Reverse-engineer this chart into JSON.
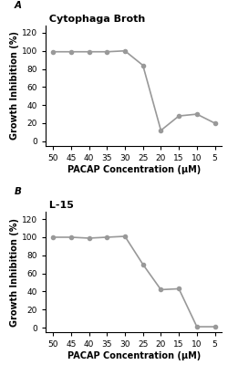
{
  "panel_A": {
    "title": "Cytophaga Broth",
    "panel_label": "A",
    "x": [
      50,
      45,
      40,
      35,
      30,
      25,
      20,
      15,
      10,
      5
    ],
    "y": [
      99,
      99,
      99,
      99,
      100,
      84,
      12,
      28,
      30,
      20
    ],
    "xlabel": "PACAP Concentration (μM)",
    "ylabel": "Growth Inhibition (%)",
    "ylim": [
      -5,
      128
    ],
    "yticks": [
      0,
      20,
      40,
      60,
      80,
      100,
      120
    ],
    "xticks": [
      50,
      45,
      40,
      35,
      30,
      25,
      20,
      15,
      10,
      5
    ]
  },
  "panel_B": {
    "title": "L-15",
    "panel_label": "B",
    "x": [
      50,
      45,
      40,
      35,
      30,
      25,
      20,
      15,
      10,
      5
    ],
    "y": [
      100,
      100,
      99,
      100,
      101,
      70,
      42,
      43,
      1,
      1
    ],
    "xlabel": "PACAP Concentration (μM)",
    "ylabel": "Growth Inhibition (%)",
    "ylim": [
      -5,
      128
    ],
    "yticks": [
      0,
      20,
      40,
      60,
      80,
      100,
      120
    ],
    "xticks": [
      50,
      45,
      40,
      35,
      30,
      25,
      20,
      15,
      10,
      5
    ]
  },
  "line_color": "#999999",
  "marker_color": "#999999",
  "marker": "o",
  "marker_size": 3,
  "line_width": 1.2,
  "background_color": "#ffffff",
  "title_fontsize": 8,
  "label_fontsize": 7,
  "tick_fontsize": 6.5,
  "panel_label_fontsize": 7.5
}
